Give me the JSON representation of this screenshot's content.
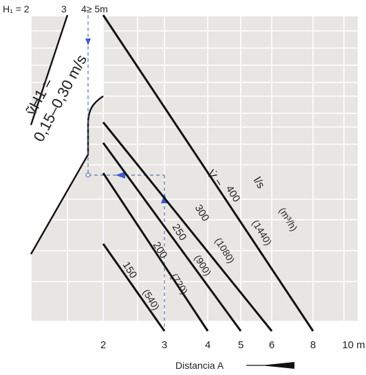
{
  "chart_data": {
    "type": "line",
    "xlabel": "Distancia A",
    "x_ticks": [
      "2",
      "3",
      "4",
      "5",
      "6",
      "8",
      "10 m"
    ],
    "top_labels": {
      "h1": "H₁ = 2",
      "t3": "3",
      "t4": "4≥ 5m"
    },
    "velocity_label": {
      "line1": "ṽH1 =",
      "line2": "0,15–0,30 m/s"
    },
    "flow_label": {
      "v": "V̇ =",
      "unit": "l/s",
      "unit2": "(m³/h)"
    },
    "series": [
      {
        "name": "150",
        "volume": "(540)",
        "x_end": 3
      },
      {
        "name": "200",
        "volume": "(720)",
        "x_end": 4
      },
      {
        "name": "250",
        "volume": "(900)",
        "x_end": 5
      },
      {
        "name": "300",
        "volume": "(1080)",
        "x_end": 6
      },
      {
        "name": "400",
        "volume": "(1440)",
        "x_end": 8
      }
    ],
    "grid": true,
    "background": "#e8e6e3",
    "accent_color": "#3b5bd6"
  }
}
